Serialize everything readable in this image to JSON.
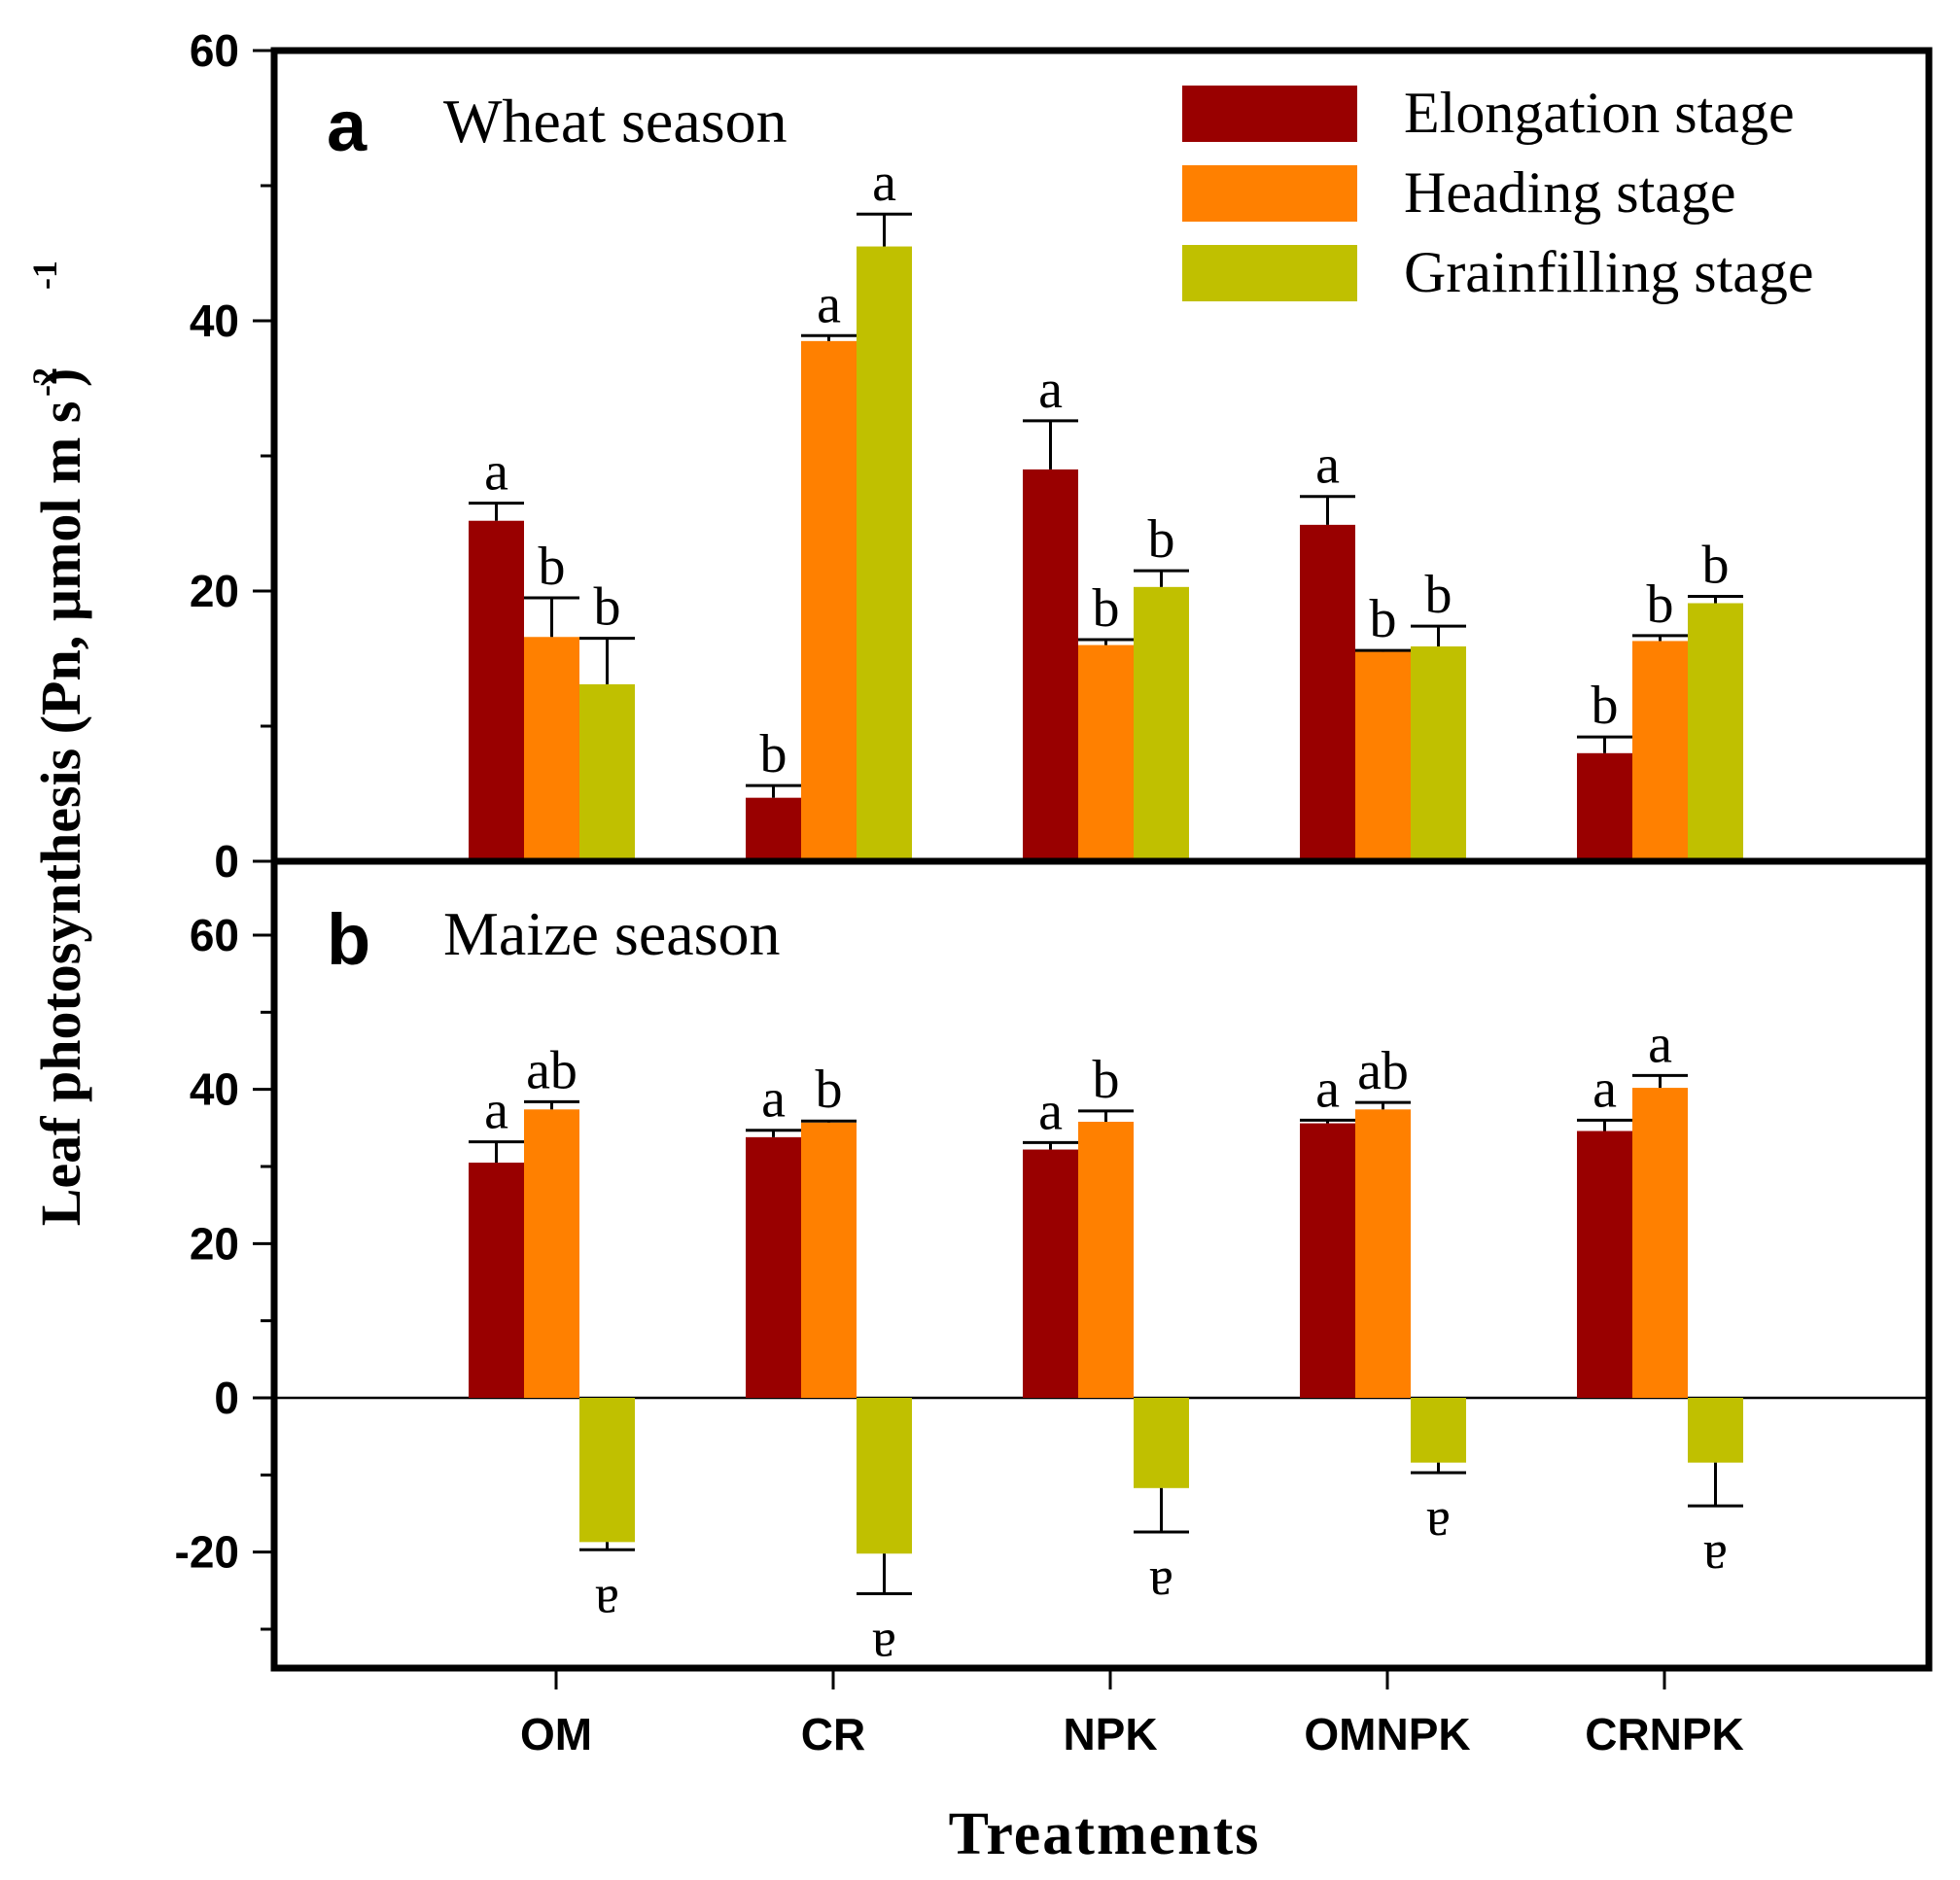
{
  "chart_data": [
    {
      "type": "bar",
      "panel_label": "a",
      "title": "Wheat season",
      "ylim": [
        0,
        60
      ],
      "y_ticks": [
        0,
        20,
        40,
        60
      ],
      "categories": [
        "OM",
        "CR",
        "NPK",
        "OMNPK",
        "CRNPK"
      ],
      "series": [
        {
          "name": "Elongation stage",
          "color": "#990000",
          "values": [
            25.2,
            4.7,
            29.0,
            24.9,
            8.0
          ],
          "errors": [
            1.3,
            0.9,
            3.6,
            2.1,
            1.2
          ],
          "letters": [
            "a",
            "b",
            "a",
            "a",
            "b"
          ]
        },
        {
          "name": "Heading stage",
          "color": "#ff8000",
          "values": [
            16.6,
            38.5,
            16.0,
            15.5,
            16.3
          ],
          "errors": [
            2.9,
            0.4,
            0.4,
            0.1,
            0.4
          ],
          "letters": [
            "b",
            "a",
            "b",
            "b",
            "b"
          ]
        },
        {
          "name": "Grainfilling stage",
          "color": "#c0c000",
          "values": [
            13.1,
            45.5,
            20.3,
            15.9,
            19.1
          ],
          "errors": [
            3.4,
            2.4,
            1.2,
            1.5,
            0.5
          ],
          "letters": [
            "b",
            "a",
            "b",
            "b",
            "b"
          ]
        }
      ]
    },
    {
      "type": "bar",
      "panel_label": "b",
      "title": "Maize season",
      "ylim": [
        -35,
        70
      ],
      "y_ticks": [
        -20,
        0,
        20,
        40,
        60
      ],
      "categories": [
        "OM",
        "CR",
        "NPK",
        "OMNPK",
        "CRNPK"
      ],
      "series": [
        {
          "name": "Elongation stage",
          "color": "#990000",
          "values": [
            30.5,
            33.8,
            32.2,
            35.6,
            34.6
          ],
          "errors": [
            2.7,
            0.9,
            0.9,
            0.4,
            1.4
          ],
          "letters": [
            "a",
            "a",
            "a",
            "a",
            "a"
          ]
        },
        {
          "name": "Heading stage",
          "color": "#ff8000",
          "values": [
            37.4,
            35.7,
            35.8,
            37.4,
            40.2
          ],
          "errors": [
            1.0,
            0.2,
            1.4,
            0.9,
            1.6
          ],
          "letters": [
            "ab",
            "b",
            "b",
            "ab",
            "a"
          ]
        },
        {
          "name": "Grainfilling stage",
          "color": "#c0c000",
          "values": [
            -18.7,
            -20.2,
            -11.7,
            -8.4,
            -8.4
          ],
          "errors": [
            1.0,
            5.2,
            5.7,
            1.3,
            5.6
          ],
          "letters": [
            "a",
            "a",
            "a",
            "a",
            "a"
          ]
        }
      ]
    }
  ],
  "ylabel": "Leaf photosynthesis (Pn, µmol m  s )",
  "ylabel_sup_1": "-2",
  "ylabel_sup_2": "-1",
  "xlabel": "Treatments",
  "legend": [
    {
      "name": "Elongation stage",
      "color": "#990000"
    },
    {
      "name": "Heading stage",
      "color": "#ff8000"
    },
    {
      "name": "Grainfilling stage",
      "color": "#c0c000"
    }
  ]
}
